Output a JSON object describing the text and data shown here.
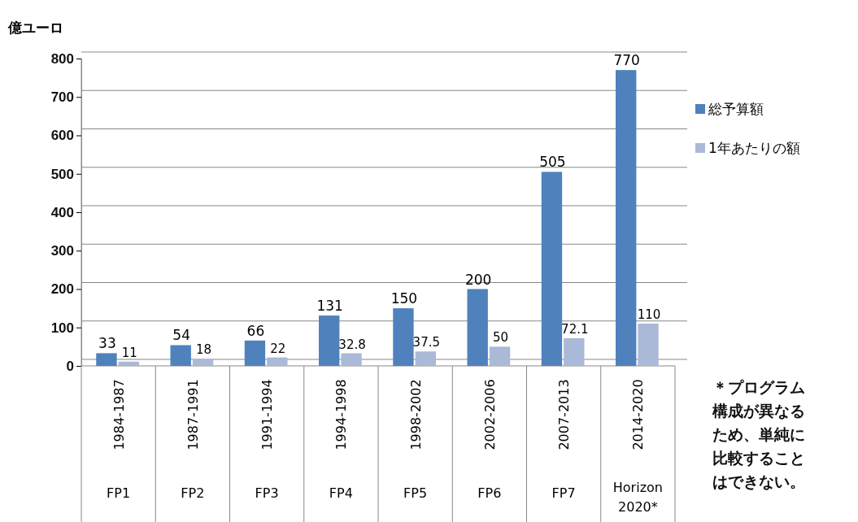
{
  "chart_data": {
    "type": "bar",
    "ylabel": "億ユーロ",
    "categories": [
      "1984-1987\nFP1",
      "1987-1991\nFP2",
      "1991-1994\nFP3",
      "1994-1998\nFP4",
      "1998-2002\nFP5",
      "2002-2006\nFP6",
      "2007-2013\nFP7",
      "2014-2020\nHorizon 2020*"
    ],
    "series": [
      {
        "name": "総予算額",
        "color": "#4f81bd",
        "values": [
          33,
          54,
          66,
          131,
          150,
          200,
          505,
          770
        ]
      },
      {
        "name": "1年あたりの額",
        "color": "#aab9d8",
        "values": [
          11,
          18,
          22,
          32.8,
          37.5,
          50,
          72.1,
          110
        ]
      }
    ],
    "ylim": [
      0,
      800
    ],
    "yticks": [
      0,
      100,
      200,
      300,
      400,
      500,
      600,
      700,
      800
    ],
    "grid": "y",
    "legend": "right",
    "data_labels": true,
    "annotations": [
      "＊プログラム構成が異なるため、単純に比較することはできない。"
    ]
  }
}
